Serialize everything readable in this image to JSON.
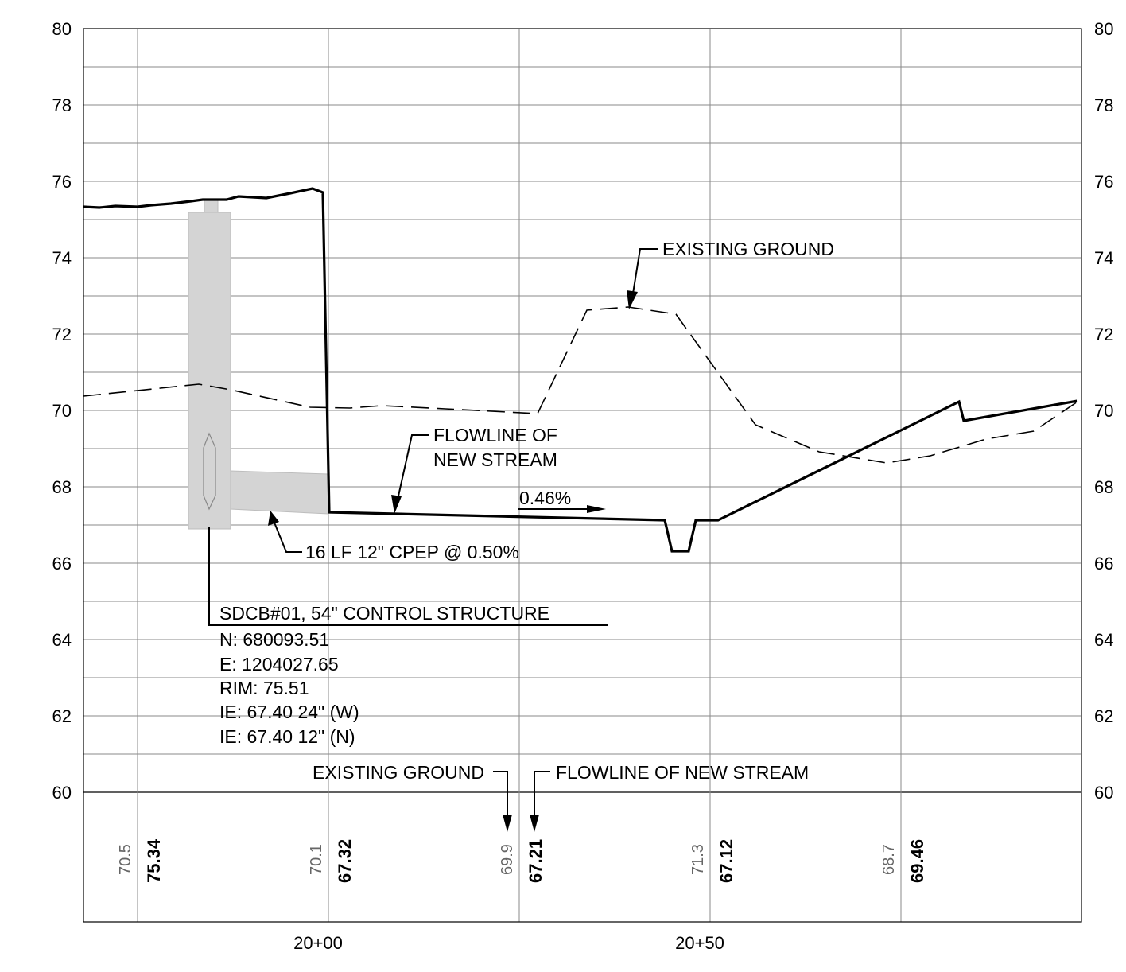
{
  "elevation_labels": [
    "80",
    "78",
    "76",
    "74",
    "72",
    "70",
    "68",
    "66",
    "64",
    "62",
    "60"
  ],
  "station_labels": [
    "20+00",
    "20+50"
  ],
  "annotations": {
    "existing_ground_top": "EXISTING GROUND",
    "flowline_line1": "FLOWLINE OF",
    "flowline_line2": "NEW STREAM",
    "slope": "0.46%",
    "pipe": "16 LF 12\" CPEP @ 0.50%",
    "structure": {
      "title": "SDCB#01, 54\" CONTROL STRUCTURE",
      "lines": [
        "N: 680093.51",
        "E: 1204027.65",
        "RIM: 75.51",
        "IE: 67.40 24\" (W)",
        "IE: 67.40 12\" (N)"
      ]
    },
    "legend_existing": "EXISTING GROUND",
    "legend_flowline": "FLOWLINE OF NEW STREAM"
  },
  "elevation_table": [
    {
      "existing": "70.5",
      "flowline": "75.34"
    },
    {
      "existing": "70.1",
      "flowline": "67.32"
    },
    {
      "existing": "69.9",
      "flowline": "67.21"
    },
    {
      "existing": "71.3",
      "flowline": "67.12"
    },
    {
      "existing": "68.7",
      "flowline": "69.46"
    }
  ],
  "colors": {
    "structure_fill": "#d4d4d4",
    "grid": "#8a8a8a",
    "ink": "#000000"
  }
}
